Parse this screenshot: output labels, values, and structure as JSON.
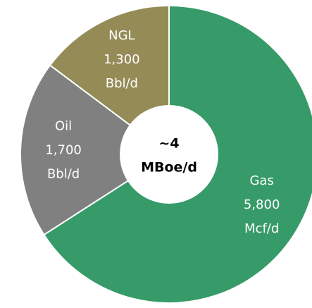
{
  "chart_data": {
    "type": "donut",
    "categories": [
      "Gas",
      "Oil",
      "NGL"
    ],
    "values": [
      5800,
      1700,
      1300
    ],
    "value_labels": [
      "5,800",
      "1,700",
      "1,300"
    ],
    "units": [
      "Mcf/d",
      "Bbl/d",
      "Bbl/d"
    ],
    "colors": [
      "#379b69",
      "#808080",
      "#958b57"
    ],
    "center_label": [
      "~4",
      "MBoe/d"
    ]
  }
}
